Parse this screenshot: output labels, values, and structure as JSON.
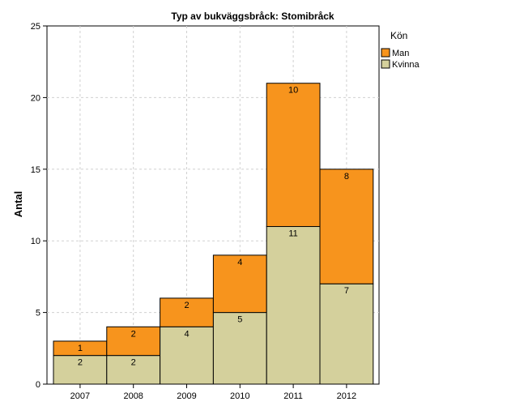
{
  "chart_data": {
    "type": "bar",
    "stacked": true,
    "title": "Typ av bukväggsbråck: Stomibråck",
    "xlabel": "",
    "ylabel": "Antal",
    "categories": [
      "2007",
      "2008",
      "2009",
      "2010",
      "2011",
      "2012"
    ],
    "series": [
      {
        "name": "Kvinna",
        "values": [
          2,
          2,
          4,
          5,
          11,
          7
        ],
        "color": "#d4d09c"
      },
      {
        "name": "Man",
        "values": [
          1,
          2,
          2,
          4,
          10,
          8
        ],
        "color": "#f7941d"
      }
    ],
    "ylim": [
      0,
      25
    ],
    "yticks": [
      0,
      5,
      10,
      15,
      20,
      25
    ],
    "grid": true,
    "legend": {
      "title": "Kön",
      "position": "top-right",
      "entries": [
        "Man",
        "Kvinna"
      ]
    }
  }
}
